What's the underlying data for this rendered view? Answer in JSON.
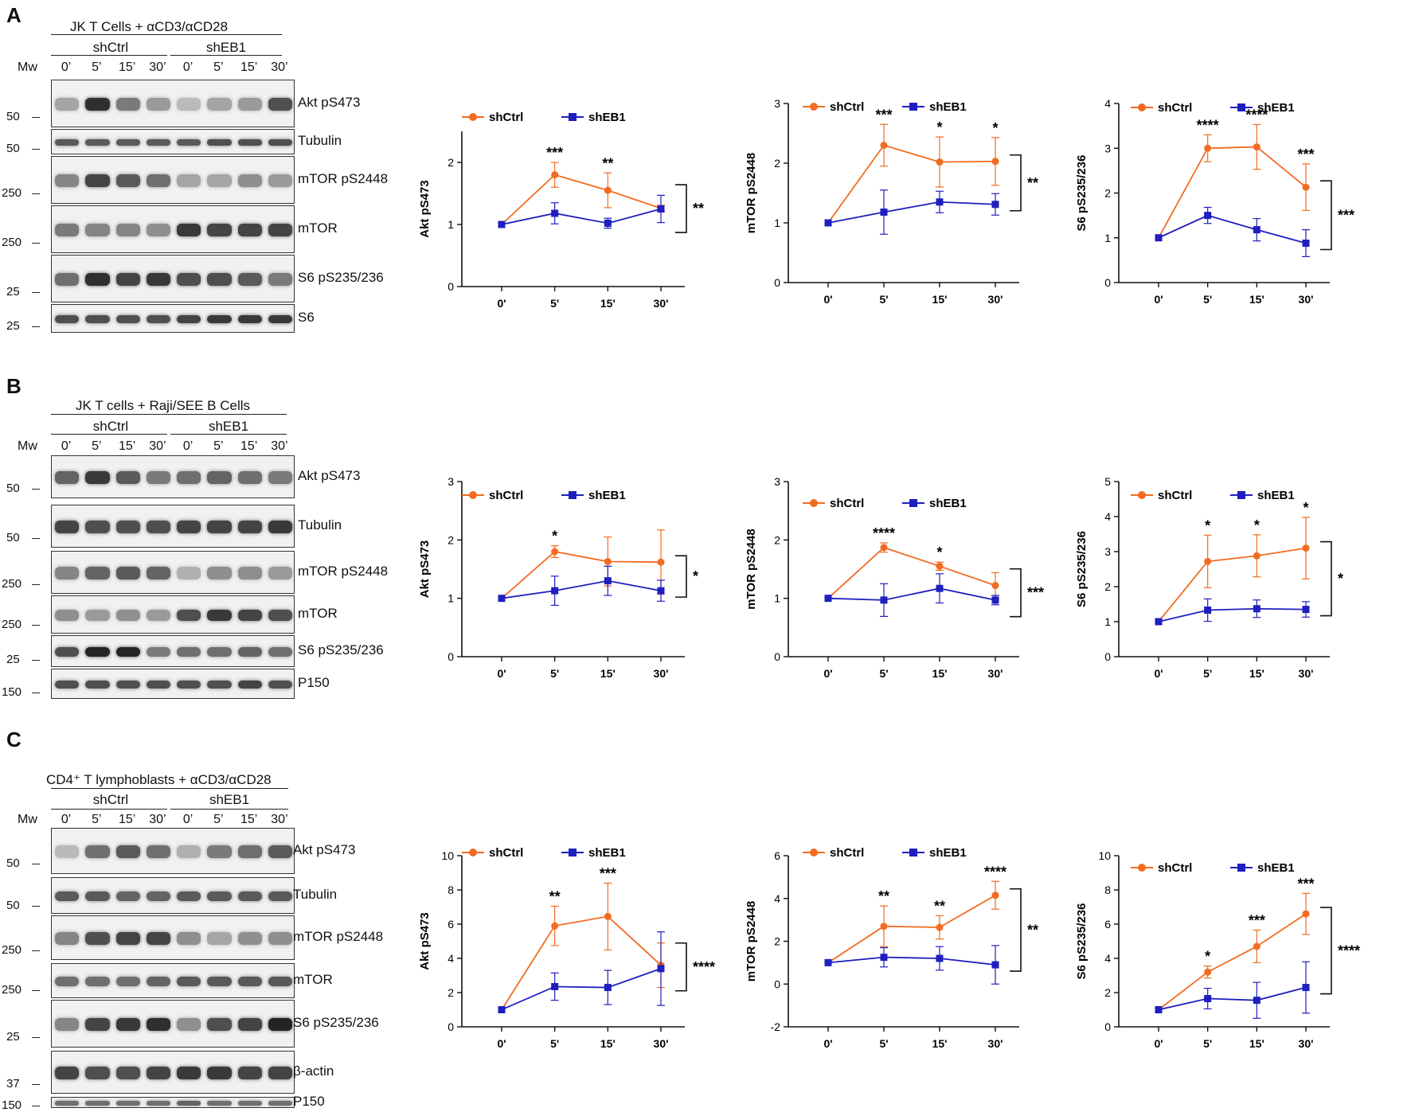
{
  "colors": {
    "shCtrl": "#f26b21",
    "shEB1": "#1f1fbf",
    "axis": "#111111"
  },
  "panels": [
    {
      "letter": "A",
      "blot": {
        "title": "JK T Cells + αCD3/αCD28",
        "mw_label": "Mw",
        "groups": [
          "shCtrl",
          "shEB1"
        ],
        "times": [
          "0’",
          "5’",
          "15’",
          "30’",
          "0’",
          "5’",
          "15’",
          "30’"
        ],
        "strips": [
          {
            "protein": "Akt pS473",
            "mw": "50",
            "dark": [
              0.35,
              0.9,
              0.55,
              0.4,
              0.25,
              0.35,
              0.4,
              0.75
            ]
          },
          {
            "protein": "Tubulin",
            "mw": "50",
            "dark": [
              0.7,
              0.7,
              0.7,
              0.7,
              0.7,
              0.75,
              0.75,
              0.75
            ]
          },
          {
            "protein": "mTOR pS2448",
            "mw": "250",
            "dark": [
              0.5,
              0.8,
              0.7,
              0.6,
              0.35,
              0.35,
              0.45,
              0.4
            ]
          },
          {
            "protein": "mTOR",
            "mw": "250",
            "dark": [
              0.55,
              0.5,
              0.5,
              0.45,
              0.85,
              0.8,
              0.8,
              0.8
            ]
          },
          {
            "protein": "S6 pS235/236",
            "mw": "25",
            "dark": [
              0.6,
              0.9,
              0.8,
              0.85,
              0.75,
              0.75,
              0.7,
              0.55
            ]
          },
          {
            "protein": "S6",
            "mw": "25",
            "dark": [
              0.75,
              0.75,
              0.75,
              0.75,
              0.8,
              0.85,
              0.85,
              0.85
            ]
          }
        ]
      }
    },
    {
      "letter": "B",
      "blot": {
        "title": "JK T cells + Raji/SEE B Cells",
        "mw_label": "Mw",
        "groups": [
          "shCtrl",
          "shEB1"
        ],
        "times": [
          "0’",
          "5’",
          "15’",
          "30’",
          "0’",
          "5’",
          "15’",
          "30’"
        ],
        "strips": [
          {
            "protein": "Akt pS473",
            "mw": "50",
            "dark": [
              0.65,
              0.85,
              0.7,
              0.55,
              0.6,
              0.65,
              0.6,
              0.55
            ]
          },
          {
            "protein": "Tubulin",
            "mw": "50",
            "dark": [
              0.8,
              0.75,
              0.75,
              0.75,
              0.8,
              0.8,
              0.8,
              0.85
            ]
          },
          {
            "protein": "mTOR pS2448",
            "mw": "250",
            "dark": [
              0.5,
              0.65,
              0.7,
              0.65,
              0.3,
              0.45,
              0.45,
              0.4
            ]
          },
          {
            "protein": "mTOR",
            "mw": "250",
            "dark": [
              0.45,
              0.4,
              0.45,
              0.4,
              0.75,
              0.85,
              0.8,
              0.75
            ]
          },
          {
            "protein": "S6 pS235/236",
            "mw": "25",
            "dark": [
              0.75,
              0.95,
              0.95,
              0.55,
              0.6,
              0.6,
              0.65,
              0.6
            ]
          },
          {
            "protein": "P150",
            "mw": "150",
            "dark": [
              0.75,
              0.75,
              0.75,
              0.75,
              0.75,
              0.75,
              0.8,
              0.75
            ]
          }
        ]
      }
    },
    {
      "letter": "C",
      "blot": {
        "title": "CD4⁺ T lymphoblasts + αCD3/αCD28",
        "mw_label": "Mw",
        "groups": [
          "shCtrl",
          "shEB1"
        ],
        "times": [
          "0’",
          "5’",
          "15’",
          "30’",
          "0’",
          "5’",
          "15’",
          "30’"
        ],
        "strips": [
          {
            "protein": "Akt pS473",
            "mw": "50",
            "dark": [
              0.25,
              0.6,
              0.7,
              0.6,
              0.3,
              0.55,
              0.6,
              0.7
            ]
          },
          {
            "protein": "Tubulin",
            "mw": "50",
            "dark": [
              0.7,
              0.7,
              0.65,
              0.65,
              0.7,
              0.7,
              0.7,
              0.7
            ]
          },
          {
            "protein": "mTOR pS2448",
            "mw": "250",
            "dark": [
              0.5,
              0.75,
              0.8,
              0.8,
              0.45,
              0.35,
              0.45,
              0.45
            ]
          },
          {
            "protein": "mTOR",
            "mw": "250",
            "dark": [
              0.6,
              0.6,
              0.6,
              0.65,
              0.7,
              0.7,
              0.7,
              0.7
            ]
          },
          {
            "protein": "S6 pS235/236",
            "mw": "25",
            "dark": [
              0.5,
              0.8,
              0.85,
              0.9,
              0.45,
              0.75,
              0.8,
              0.95
            ]
          },
          {
            "protein": "β-actin",
            "mw": "37",
            "dark": [
              0.8,
              0.75,
              0.75,
              0.8,
              0.85,
              0.85,
              0.8,
              0.8
            ]
          },
          {
            "protein": "P150",
            "mw": "150",
            "dark": [
              0.6,
              0.6,
              0.6,
              0.6,
              0.65,
              0.6,
              0.6,
              0.6
            ]
          }
        ]
      }
    }
  ],
  "chart_data": [
    {
      "type": "line",
      "title": "",
      "ylabel": "Akt pS473",
      "categories": [
        "0'",
        "5'",
        "15'",
        "30'"
      ],
      "ylim": [
        0,
        2.5
      ],
      "yticks": [
        0,
        1,
        2
      ],
      "series": [
        {
          "name": "shCtrl",
          "values": [
            1.0,
            1.8,
            1.55,
            1.26
          ],
          "errors": [
            0,
            0.2,
            0.28,
            0.05
          ]
        },
        {
          "name": "shEB1",
          "values": [
            1.0,
            1.18,
            1.02,
            1.25
          ],
          "errors": [
            0,
            0.17,
            0.08,
            0.22
          ]
        }
      ],
      "point_stars": [
        null,
        "***",
        "**",
        null
      ],
      "bracket_stars": "**"
    },
    {
      "type": "line",
      "title": "",
      "ylabel": "mTOR pS2448",
      "categories": [
        "0'",
        "5'",
        "15'",
        "30'"
      ],
      "ylim": [
        0,
        3
      ],
      "yticks": [
        0,
        1,
        2,
        3
      ],
      "series": [
        {
          "name": "shCtrl",
          "values": [
            1.0,
            2.3,
            2.02,
            2.03
          ],
          "errors": [
            0,
            0.35,
            0.42,
            0.4
          ]
        },
        {
          "name": "shEB1",
          "values": [
            1.0,
            1.18,
            1.35,
            1.31
          ],
          "errors": [
            0,
            0.37,
            0.18,
            0.18
          ]
        }
      ],
      "point_stars": [
        null,
        "***",
        "*",
        "*"
      ],
      "bracket_stars": "**"
    },
    {
      "type": "line",
      "title": "",
      "ylabel": "S6 pS235/236",
      "categories": [
        "0'",
        "5'",
        "15'",
        "30'"
      ],
      "ylim": [
        0,
        4
      ],
      "yticks": [
        0,
        1,
        2,
        3,
        4
      ],
      "series": [
        {
          "name": "shCtrl",
          "values": [
            1.0,
            3.0,
            3.03,
            2.13
          ],
          "errors": [
            0,
            0.3,
            0.5,
            0.52
          ]
        },
        {
          "name": "shEB1",
          "values": [
            1.0,
            1.5,
            1.18,
            0.88
          ],
          "errors": [
            0,
            0.18,
            0.25,
            0.3
          ]
        }
      ],
      "point_stars": [
        null,
        "****",
        "****",
        "***"
      ],
      "bracket_stars": "***"
    },
    {
      "type": "line",
      "title": "",
      "ylabel": "Akt pS473",
      "categories": [
        "0'",
        "5'",
        "15'",
        "30'"
      ],
      "ylim": [
        0,
        3
      ],
      "yticks": [
        0,
        1,
        2,
        3
      ],
      "series": [
        {
          "name": "shCtrl",
          "values": [
            1.0,
            1.8,
            1.63,
            1.62
          ],
          "errors": [
            0,
            0.1,
            0.42,
            0.55
          ]
        },
        {
          "name": "shEB1",
          "values": [
            1.0,
            1.13,
            1.3,
            1.13
          ],
          "errors": [
            0,
            0.25,
            0.25,
            0.18
          ]
        }
      ],
      "point_stars": [
        null,
        "*",
        null,
        null
      ],
      "bracket_stars": "*"
    },
    {
      "type": "line",
      "title": "",
      "ylabel": "mTOR pS2448",
      "categories": [
        "0'",
        "5'",
        "15'",
        "30'"
      ],
      "ylim": [
        0,
        3
      ],
      "yticks": [
        0,
        1,
        2,
        3
      ],
      "series": [
        {
          "name": "shCtrl",
          "values": [
            1.0,
            1.87,
            1.55,
            1.22
          ],
          "errors": [
            0,
            0.08,
            0.07,
            0.22
          ]
        },
        {
          "name": "shEB1",
          "values": [
            1.0,
            0.97,
            1.17,
            0.97
          ],
          "errors": [
            0,
            0.28,
            0.25,
            0.08
          ]
        }
      ],
      "point_stars": [
        null,
        "****",
        "*",
        null
      ],
      "bracket_stars": "***"
    },
    {
      "type": "line",
      "title": "",
      "ylabel": "S6 pS235/236",
      "categories": [
        "0'",
        "5'",
        "15'",
        "30'"
      ],
      "ylim": [
        0,
        5
      ],
      "yticks": [
        0,
        1,
        2,
        3,
        4,
        5
      ],
      "series": [
        {
          "name": "shCtrl",
          "values": [
            1.0,
            2.72,
            2.88,
            3.1
          ],
          "errors": [
            0,
            0.75,
            0.6,
            0.88
          ]
        },
        {
          "name": "shEB1",
          "values": [
            1.0,
            1.33,
            1.37,
            1.35
          ],
          "errors": [
            0,
            0.32,
            0.25,
            0.22
          ]
        }
      ],
      "point_stars": [
        null,
        "*",
        "*",
        "*"
      ],
      "bracket_stars": "*"
    },
    {
      "type": "line",
      "title": "",
      "ylabel": "Akt pS473",
      "categories": [
        "0'",
        "5'",
        "15'",
        "30'"
      ],
      "ylim": [
        0,
        10
      ],
      "yticks": [
        0,
        2,
        4,
        6,
        8,
        10
      ],
      "series": [
        {
          "name": "shCtrl",
          "values": [
            1.0,
            5.9,
            6.45,
            3.6
          ],
          "errors": [
            0,
            1.15,
            1.95,
            1.3
          ]
        },
        {
          "name": "shEB1",
          "values": [
            1.0,
            2.35,
            2.3,
            3.4
          ],
          "errors": [
            0,
            0.8,
            1.0,
            2.15
          ]
        }
      ],
      "point_stars": [
        null,
        "**",
        "***",
        null
      ],
      "bracket_stars": "****"
    },
    {
      "type": "line",
      "title": "",
      "ylabel": "mTOR pS2448",
      "categories": [
        "0'",
        "5'",
        "15'",
        "30'"
      ],
      "ylim": [
        -2,
        6
      ],
      "yticks": [
        -2,
        0,
        2,
        4,
        6
      ],
      "series": [
        {
          "name": "shCtrl",
          "values": [
            1.0,
            2.7,
            2.65,
            4.15
          ],
          "errors": [
            0,
            0.95,
            0.55,
            0.65
          ]
        },
        {
          "name": "shEB1",
          "values": [
            1.0,
            1.25,
            1.2,
            0.9
          ],
          "errors": [
            0,
            0.45,
            0.55,
            0.9
          ]
        }
      ],
      "point_stars": [
        null,
        "**",
        "**",
        "****"
      ],
      "bracket_stars": "**"
    },
    {
      "type": "line",
      "title": "",
      "ylabel": "S6 pS235/236",
      "categories": [
        "0'",
        "5'",
        "15'",
        "30'"
      ],
      "ylim": [
        0,
        10
      ],
      "yticks": [
        0,
        2,
        4,
        6,
        8,
        10
      ],
      "series": [
        {
          "name": "shCtrl",
          "values": [
            1.0,
            3.2,
            4.7,
            6.6
          ],
          "errors": [
            0,
            0.35,
            0.95,
            1.2
          ]
        },
        {
          "name": "shEB1",
          "values": [
            1.0,
            1.65,
            1.55,
            2.3
          ],
          "errors": [
            0,
            0.6,
            1.05,
            1.5
          ]
        }
      ],
      "point_stars": [
        null,
        "*",
        "***",
        "***"
      ],
      "bracket_stars": "****"
    }
  ]
}
